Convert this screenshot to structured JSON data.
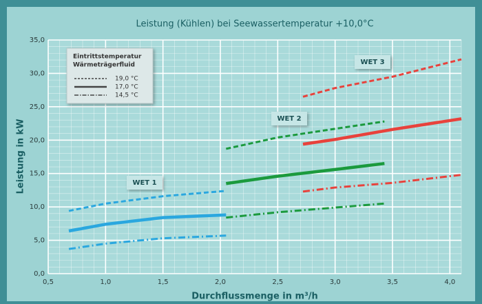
{
  "chart_data": {
    "type": "line",
    "title": "Leistung (Kühlen) bei Seewassertemperatur +10,0°C",
    "x_label": "Durchflussmenge in m³/h",
    "y_label": "Leistung in kW",
    "xlim": [
      0.5,
      4.1
    ],
    "ylim": [
      0,
      35
    ],
    "xticks": [
      {
        "value": 0.5,
        "label": "0,5"
      },
      {
        "value": 1.0,
        "label": "1,0"
      },
      {
        "value": 1.5,
        "label": "1,5"
      },
      {
        "value": 2.0,
        "label": "2,0"
      },
      {
        "value": 2.5,
        "label": "2,5"
      },
      {
        "value": 3.0,
        "label": "3,0"
      },
      {
        "value": 3.5,
        "label": "3,5"
      },
      {
        "value": 4.0,
        "label": "4,0"
      }
    ],
    "yticks": [
      {
        "value": 0,
        "label": "0,0"
      },
      {
        "value": 5,
        "label": "5,0"
      },
      {
        "value": 10,
        "label": "10,0"
      },
      {
        "value": 15,
        "label": "15,0"
      },
      {
        "value": 20,
        "label": "20,0"
      },
      {
        "value": 25,
        "label": "25,0"
      },
      {
        "value": 30,
        "label": "30,0"
      },
      {
        "value": 35,
        "label": "35,0"
      }
    ],
    "grid": true,
    "minor_grid": true,
    "legend": {
      "title": [
        "Eintrittstemperatur",
        "Wärmeträgerfluid"
      ],
      "entries": [
        {
          "label": "19,0 °C",
          "dash": "dashed"
        },
        {
          "label": "17,0 °C",
          "dash": "solid"
        },
        {
          "label": "14,5 °C",
          "dash": "dashdot"
        }
      ],
      "position": "upper left"
    },
    "groups": [
      {
        "name": "WET 1",
        "color": "#2aa7df",
        "x": [
          0.68,
          1.0,
          1.5,
          2.05
        ],
        "lines": [
          {
            "values": [
              9.4,
              10.5,
              11.6,
              12.4
            ]
          },
          {
            "values": [
              6.4,
              7.4,
              8.4,
              8.8
            ]
          },
          {
            "values": [
              3.7,
              4.5,
              5.3,
              5.7
            ]
          }
        ]
      },
      {
        "name": "WET 2",
        "color": "#1b9a3d",
        "x": [
          2.05,
          2.5,
          3.0,
          3.43
        ],
        "lines": [
          {
            "values": [
              18.7,
              20.4,
              21.7,
              22.8
            ]
          },
          {
            "values": [
              13.5,
              14.6,
              15.6,
              16.5
            ]
          },
          {
            "values": [
              8.4,
              9.2,
              9.9,
              10.5
            ]
          }
        ]
      },
      {
        "name": "WET 3",
        "color": "#e8423c",
        "x": [
          2.72,
          3.0,
          3.5,
          4.1
        ],
        "lines": [
          {
            "values": [
              26.5,
              27.8,
              29.5,
              32.1
            ]
          },
          {
            "values": [
              19.4,
              20.1,
              21.6,
              23.2
            ]
          },
          {
            "values": [
              12.3,
              12.9,
              13.6,
              14.8
            ]
          }
        ]
      }
    ]
  }
}
